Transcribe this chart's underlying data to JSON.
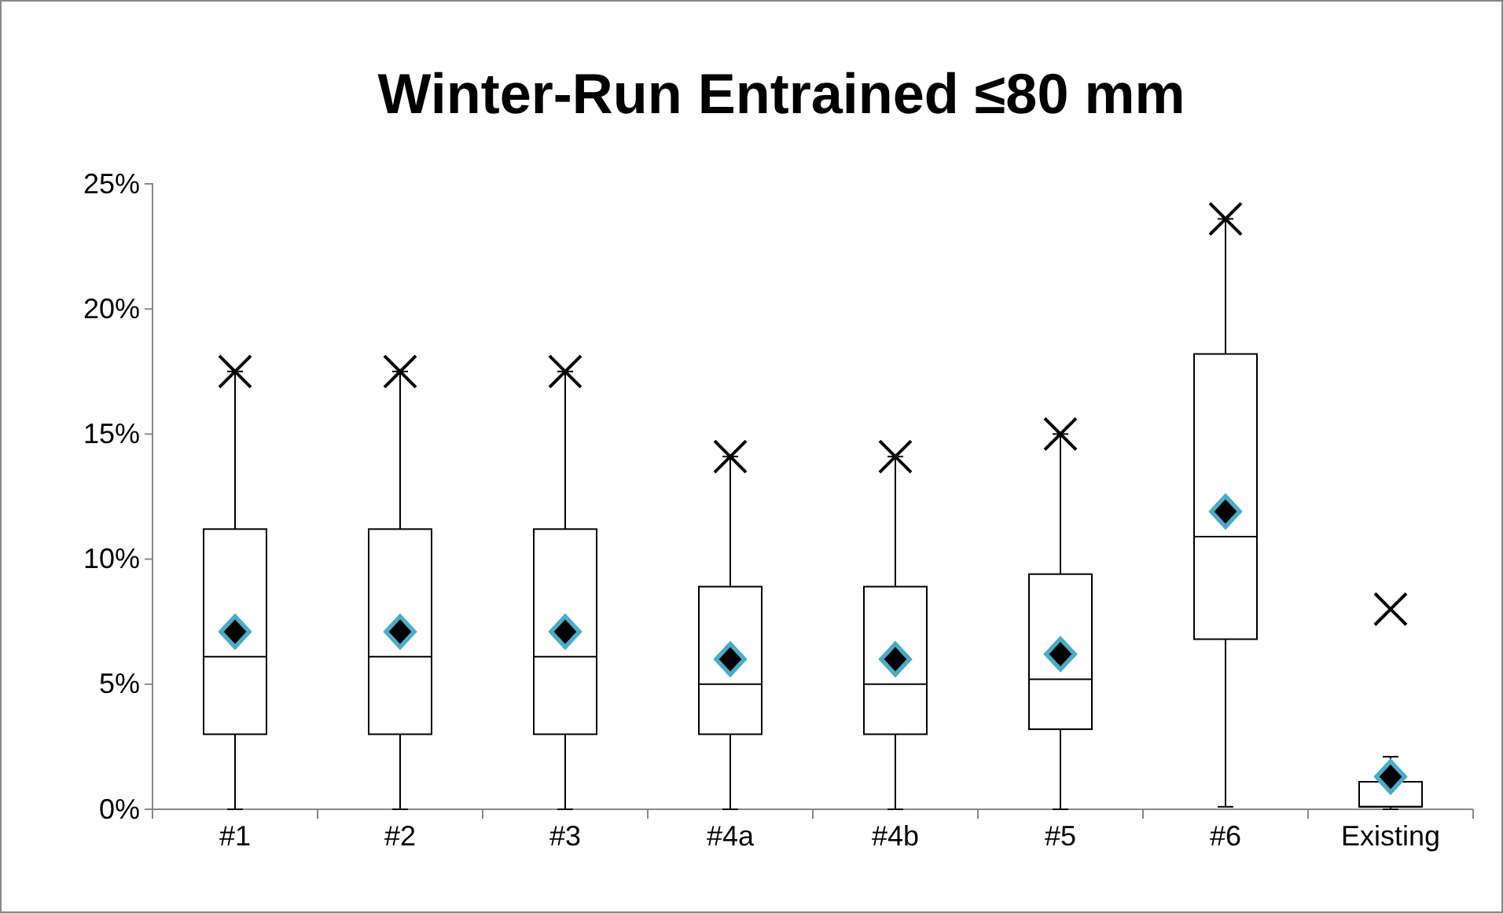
{
  "chart_data": {
    "type": "box",
    "title": "Winter-Run Entrained ≤80 mm",
    "categories": [
      "#1",
      "#2",
      "#3",
      "#4a",
      "#4b",
      "#5",
      "#6",
      "Existing"
    ],
    "ylim": [
      0,
      25
    ],
    "yticks": [
      {
        "value": 0,
        "label": "0%"
      },
      {
        "value": 5,
        "label": "5%"
      },
      {
        "value": 10,
        "label": "10%"
      },
      {
        "value": 15,
        "label": "15%"
      },
      {
        "value": 20,
        "label": "20%"
      },
      {
        "value": 25,
        "label": "25%"
      }
    ],
    "grid": false,
    "marker": "diamond",
    "boxes": [
      {
        "low": 0,
        "q1": 3.0,
        "median": 6.1,
        "q3": 11.2,
        "high": 17.5,
        "mean": 7.1,
        "outliers": [
          17.5
        ]
      },
      {
        "low": 0,
        "q1": 3.0,
        "median": 6.1,
        "q3": 11.2,
        "high": 17.5,
        "mean": 7.1,
        "outliers": [
          17.5
        ]
      },
      {
        "low": 0,
        "q1": 3.0,
        "median": 6.1,
        "q3": 11.2,
        "high": 17.5,
        "mean": 7.1,
        "outliers": [
          17.5
        ]
      },
      {
        "low": 0,
        "q1": 3.0,
        "median": 5.0,
        "q3": 8.9,
        "high": 14.1,
        "mean": 6.0,
        "outliers": [
          14.1
        ]
      },
      {
        "low": 0,
        "q1": 3.0,
        "median": 5.0,
        "q3": 8.9,
        "high": 14.1,
        "mean": 6.0,
        "outliers": [
          14.1
        ]
      },
      {
        "low": 0,
        "q1": 3.2,
        "median": 5.2,
        "q3": 9.4,
        "high": 15.0,
        "mean": 6.2,
        "outliers": [
          15.0
        ]
      },
      {
        "low": 0.1,
        "q1": 6.8,
        "median": 10.9,
        "q3": 18.2,
        "high": 23.6,
        "mean": 11.9,
        "outliers": [
          23.6
        ]
      },
      {
        "low": 0,
        "q1": 0.1,
        "median": 0.1,
        "q3": 1.1,
        "high": 2.1,
        "mean": 1.3,
        "outliers": [
          8.0
        ]
      }
    ]
  }
}
